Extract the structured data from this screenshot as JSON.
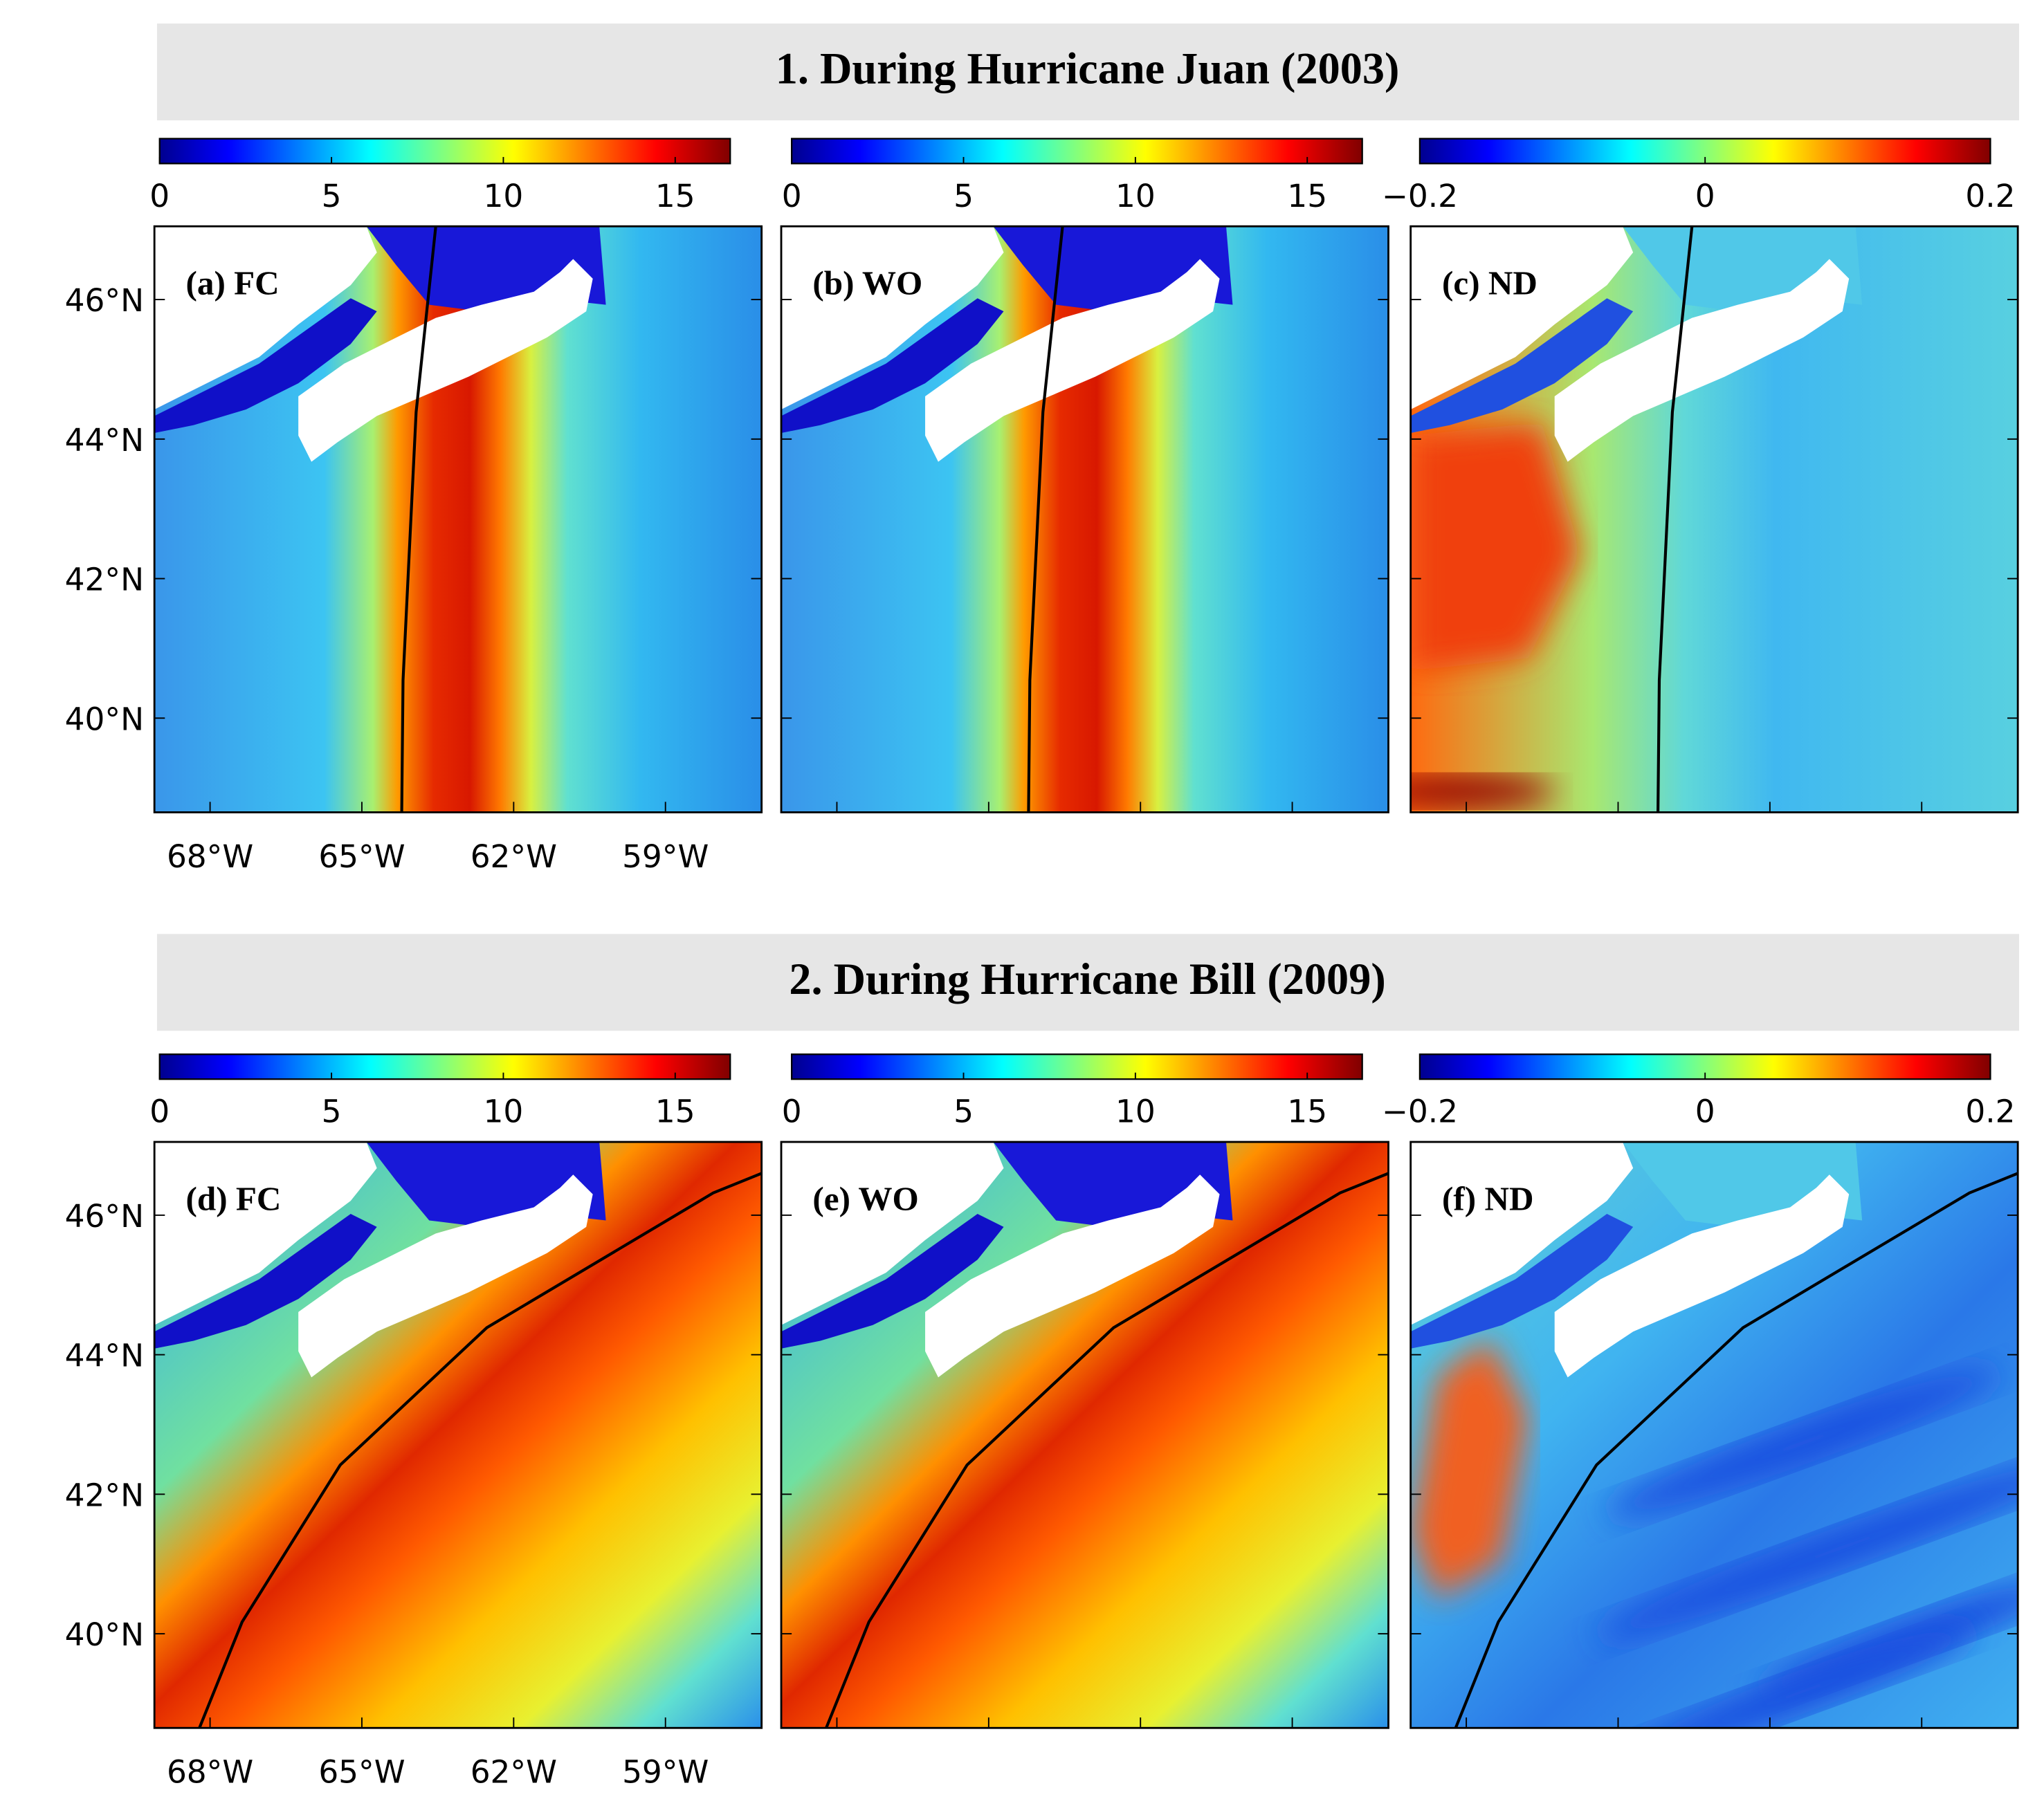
{
  "sections": [
    {
      "title": "1. During Hurricane Juan (2003)",
      "colorbars": [
        {
          "range": [
            0,
            16.6
          ],
          "ticks": [
            0,
            5,
            10,
            15
          ]
        },
        {
          "range": [
            0,
            16.6
          ],
          "ticks": [
            0,
            5,
            10,
            15
          ]
        },
        {
          "range": [
            -0.2,
            0.2
          ],
          "ticks": [
            {
              "value": -0.2,
              "label": "−0.2"
            },
            0,
            0.2
          ]
        }
      ],
      "panels": [
        {
          "label": "(a) FC"
        },
        {
          "label": "(b) WO"
        },
        {
          "label": "(c) ND"
        }
      ]
    },
    {
      "title": "2. During Hurricane Bill (2009)",
      "colorbars": [
        {
          "range": [
            0,
            16.6
          ],
          "ticks": [
            0,
            5,
            10,
            15
          ]
        },
        {
          "range": [
            0,
            16.6
          ],
          "ticks": [
            0,
            5,
            10,
            15
          ]
        },
        {
          "range": [
            -0.2,
            0.2
          ],
          "ticks": [
            {
              "value": -0.2,
              "label": "−0.2"
            },
            0,
            0.2
          ]
        }
      ],
      "panels": [
        {
          "label": "(d) FC"
        },
        {
          "label": "(e) WO"
        },
        {
          "label": "(f) ND"
        }
      ]
    }
  ],
  "map": {
    "xlim": [
      -69.1,
      -57.1
    ],
    "ylim": [
      38.65,
      47.05
    ],
    "lat_ticks": [
      {
        "value": 46,
        "label": "46°N"
      },
      {
        "value": 44,
        "label": "44°N"
      },
      {
        "value": 42,
        "label": "42°N"
      },
      {
        "value": 40,
        "label": "40°N"
      }
    ],
    "lon_ticks": [
      {
        "value": -68,
        "label": "68°W"
      },
      {
        "value": -65,
        "label": "65°W"
      },
      {
        "value": -62,
        "label": "62°W"
      },
      {
        "value": -59,
        "label": "59°W"
      }
    ]
  }
}
